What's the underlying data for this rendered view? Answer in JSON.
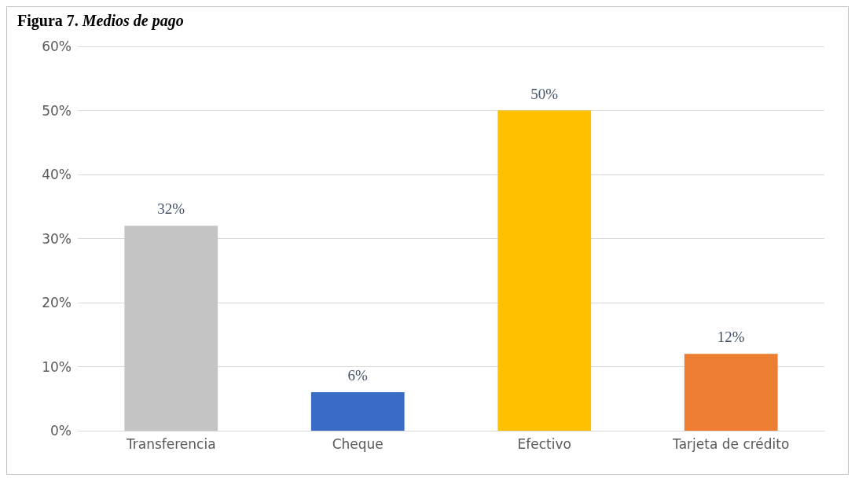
{
  "chart_data": {
    "type": "bar",
    "title": "Figura 7. Medios de pago",
    "categories": [
      "Transferencia",
      "Cheque",
      "Efectivo",
      "Tarjeta de crédito"
    ],
    "values": [
      32,
      6,
      50,
      12
    ],
    "colors": [
      "#c4c4c4",
      "#3a6cc6",
      "#ffc000",
      "#ed7d31"
    ],
    "value_labels": [
      "32%",
      "6%",
      "50%",
      "12%"
    ],
    "ylim": [
      0,
      60
    ],
    "yticks": [
      {
        "value": 0,
        "label": "0%"
      },
      {
        "value": 10,
        "label": "10%"
      },
      {
        "value": 20,
        "label": "20%"
      },
      {
        "value": 30,
        "label": "30%"
      },
      {
        "value": 40,
        "label": "40%"
      },
      {
        "value": 50,
        "label": "50%"
      },
      {
        "value": 60,
        "label": "60%"
      }
    ],
    "grid": true
  }
}
